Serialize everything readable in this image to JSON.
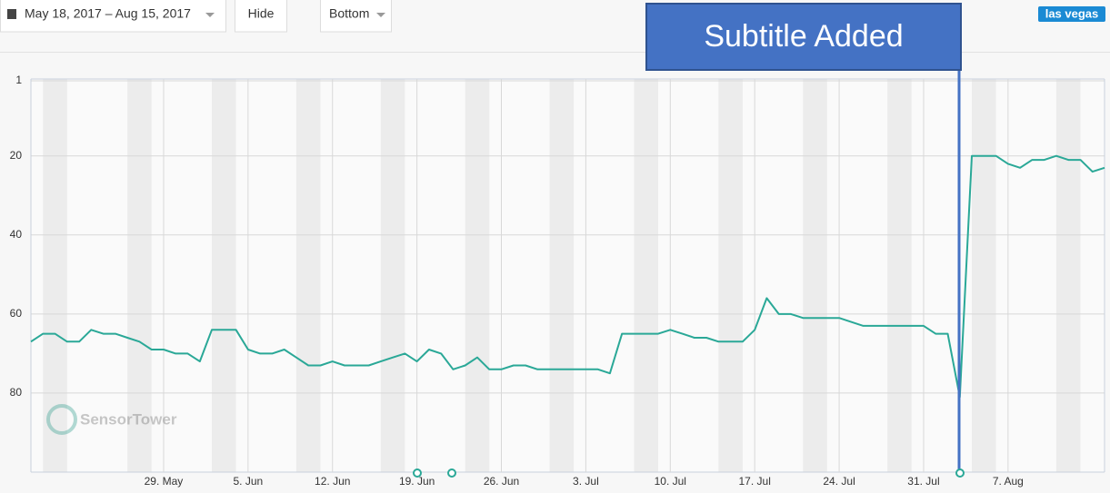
{
  "toolbar": {
    "date_range": "May 18, 2017 – Aug 15, 2017",
    "hide_button": "Hide",
    "position_select": "Bottom",
    "tag": "las vegas"
  },
  "chart_data": {
    "type": "line",
    "annotation": "Subtitle Added",
    "watermark": "SensorTower",
    "categories": [
      null,
      null,
      null,
      null,
      null,
      null,
      null,
      null,
      null,
      null,
      null,
      "29. May",
      null,
      null,
      null,
      null,
      null,
      null,
      "5. Jun",
      null,
      null,
      null,
      null,
      null,
      null,
      "12. Jun",
      null,
      null,
      null,
      null,
      null,
      null,
      "19. Jun",
      null,
      null,
      null,
      null,
      null,
      null,
      "26. Jun",
      null,
      null,
      null,
      null,
      null,
      null,
      "3. Jul",
      null,
      null,
      null,
      null,
      null,
      null,
      "10. Jul",
      null,
      null,
      null,
      null,
      null,
      null,
      "17. Jul",
      null,
      null,
      null,
      null,
      null,
      null,
      "24. Jul",
      null,
      null,
      null,
      null,
      null,
      null,
      "31. Jul",
      null,
      null,
      null,
      null,
      null,
      null,
      "7. Aug",
      null,
      null,
      null,
      null,
      null,
      null,
      null,
      null
    ],
    "values": [
      67,
      65,
      65,
      67,
      67,
      64,
      65,
      65,
      66,
      67,
      69,
      69,
      70,
      70,
      72,
      64,
      64,
      64,
      69,
      70,
      70,
      69,
      71,
      73,
      73,
      72,
      73,
      73,
      73,
      72,
      71,
      70,
      72,
      69,
      70,
      74,
      73,
      71,
      74,
      74,
      73,
      73,
      74,
      74,
      74,
      74,
      74,
      74,
      75,
      65,
      65,
      65,
      65,
      64,
      65,
      66,
      66,
      67,
      67,
      67,
      64,
      56,
      60,
      60,
      61,
      61,
      61,
      61,
      62,
      63,
      63,
      63,
      63,
      63,
      63,
      65,
      65,
      81,
      20,
      20,
      20,
      22,
      23,
      21,
      21,
      20,
      21,
      21,
      24,
      23
    ],
    "color": "#2aa897",
    "ylim": [
      1,
      100
    ],
    "y_inverted": true,
    "yticks": [
      1,
      20,
      40,
      60,
      80
    ],
    "grid": true
  }
}
